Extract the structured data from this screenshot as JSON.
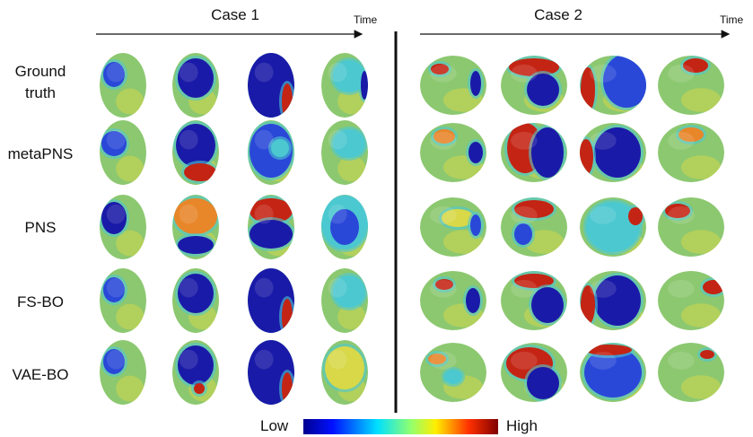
{
  "case1": {
    "title": "Case 1",
    "axis_label": "Time"
  },
  "case2": {
    "title": "Case 2",
    "axis_label": "Time"
  },
  "rows": [
    "Ground truth",
    "metaPNS",
    "PNS",
    "FS-BO",
    "VAE-BO"
  ],
  "colorbar": {
    "low": "Low",
    "high": "High"
  }
}
